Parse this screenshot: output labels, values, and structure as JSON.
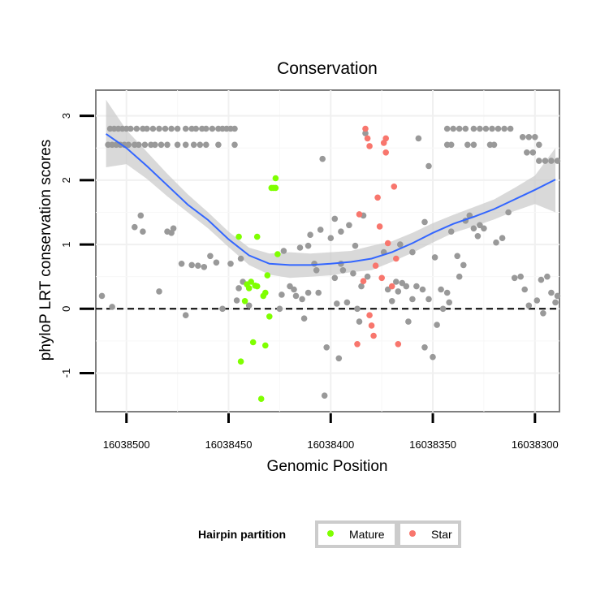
{
  "chart_data": {
    "type": "scatter",
    "title": "Conservation",
    "xlabel": "Genomic Position",
    "ylabel": "phyloP LRT conservation scores",
    "x_reversed": true,
    "xlim": [
      16038515,
      16038288
    ],
    "ylim": [
      -1.6,
      3.4
    ],
    "x_ticks": [
      16038500,
      16038450,
      16038400,
      16038350,
      16038300
    ],
    "x_tick_labels": [
      "16038500",
      "16038450",
      "16038400",
      "16038350",
      "16038300"
    ],
    "y_ticks": [
      -1,
      0,
      1,
      2,
      3
    ],
    "y_tick_labels": [
      "-1",
      "0",
      "1",
      "2",
      "3"
    ],
    "grid": true,
    "reference_line": {
      "y": 0,
      "style": "dashed"
    },
    "colors": {
      "background": "#ebebeb",
      "other": "#999999",
      "mature": "#7fff00",
      "star": "#f8766d",
      "smooth": "#3366ff",
      "ribbon": "#cccccc"
    },
    "legend": {
      "title": "Hairpin partition",
      "position": "bottom",
      "entries": [
        {
          "label": "Mature",
          "color": "#7fff00"
        },
        {
          "label": "Star",
          "color": "#f8766d"
        }
      ]
    },
    "series": [
      {
        "name": "Other",
        "color": "#999999",
        "in_legend": false,
        "points": [
          [
            16038508,
            2.8
          ],
          [
            16038506,
            2.8
          ],
          [
            16038504,
            2.8
          ],
          [
            16038502,
            2.8
          ],
          [
            16038500,
            2.8
          ],
          [
            16038498,
            2.8
          ],
          [
            16038495,
            2.8
          ],
          [
            16038492,
            2.8
          ],
          [
            16038490,
            2.8
          ],
          [
            16038487,
            2.8
          ],
          [
            16038484,
            2.8
          ],
          [
            16038481,
            2.8
          ],
          [
            16038478,
            2.8
          ],
          [
            16038475,
            2.8
          ],
          [
            16038471,
            2.8
          ],
          [
            16038468,
            2.8
          ],
          [
            16038466,
            2.8
          ],
          [
            16038463,
            2.8
          ],
          [
            16038461,
            2.8
          ],
          [
            16038458,
            2.8
          ],
          [
            16038455,
            2.8
          ],
          [
            16038453,
            2.8
          ],
          [
            16038451,
            2.8
          ],
          [
            16038449,
            2.8
          ],
          [
            16038447,
            2.8
          ],
          [
            16038509,
            2.55
          ],
          [
            16038507,
            2.55
          ],
          [
            16038505,
            2.55
          ],
          [
            16038503,
            2.55
          ],
          [
            16038501,
            2.55
          ],
          [
            16038499,
            2.55
          ],
          [
            16038496,
            2.55
          ],
          [
            16038494,
            2.55
          ],
          [
            16038491,
            2.55
          ],
          [
            16038488,
            2.55
          ],
          [
            16038486,
            2.55
          ],
          [
            16038483,
            2.55
          ],
          [
            16038480,
            2.55
          ],
          [
            16038475,
            2.55
          ],
          [
            16038471,
            2.55
          ],
          [
            16038467,
            2.55
          ],
          [
            16038464,
            2.55
          ],
          [
            16038461,
            2.55
          ],
          [
            16038455,
            2.55
          ],
          [
            16038447,
            2.55
          ],
          [
            16038343,
            2.8
          ],
          [
            16038340,
            2.8
          ],
          [
            16038337,
            2.8
          ],
          [
            16038334,
            2.8
          ],
          [
            16038330,
            2.8
          ],
          [
            16038327,
            2.8
          ],
          [
            16038324,
            2.8
          ],
          [
            16038321,
            2.8
          ],
          [
            16038318,
            2.8
          ],
          [
            16038315,
            2.8
          ],
          [
            16038312,
            2.8
          ],
          [
            16038343,
            2.55
          ],
          [
            16038341,
            2.55
          ],
          [
            16038333,
            2.55
          ],
          [
            16038330,
            2.55
          ],
          [
            16038322,
            2.55
          ],
          [
            16038320,
            2.55
          ],
          [
            16038306,
            2.67
          ],
          [
            16038303,
            2.67
          ],
          [
            16038300,
            2.67
          ],
          [
            16038304,
            2.43
          ],
          [
            16038301,
            2.43
          ],
          [
            16038298,
            2.3
          ],
          [
            16038295,
            2.3
          ],
          [
            16038292,
            2.3
          ],
          [
            16038289,
            2.3
          ],
          [
            16038298,
            2.55
          ],
          [
            16038512,
            0.2
          ],
          [
            16038507,
            0.03
          ],
          [
            16038496,
            1.27
          ],
          [
            16038493,
            1.45
          ],
          [
            16038492,
            1.2
          ],
          [
            16038484,
            0.27
          ],
          [
            16038480,
            1.2
          ],
          [
            16038478,
            1.18
          ],
          [
            16038477,
            1.25
          ],
          [
            16038473,
            0.7
          ],
          [
            16038471,
            -0.1
          ],
          [
            16038468,
            0.68
          ],
          [
            16038465,
            0.67
          ],
          [
            16038462,
            0.65
          ],
          [
            16038459,
            0.82
          ],
          [
            16038456,
            0.72
          ],
          [
            16038453,
            0.0
          ],
          [
            16038449,
            0.7
          ],
          [
            16038446,
            0.13
          ],
          [
            16038445,
            0.32
          ],
          [
            16038444,
            0.78
          ],
          [
            16038443,
            0.42
          ],
          [
            16038440,
            0.05
          ],
          [
            16038425,
            0.0
          ],
          [
            16038424,
            0.22
          ],
          [
            16038423,
            0.9
          ],
          [
            16038420,
            0.35
          ],
          [
            16038418,
            0.3
          ],
          [
            16038417,
            0.2
          ],
          [
            16038415,
            0.95
          ],
          [
            16038414,
            0.15
          ],
          [
            16038413,
            -0.15
          ],
          [
            16038411,
            0.25
          ],
          [
            16038411,
            0.98
          ],
          [
            16038410,
            1.15
          ],
          [
            16038408,
            0.7
          ],
          [
            16038407,
            0.6
          ],
          [
            16038406,
            0.25
          ],
          [
            16038405,
            1.23
          ],
          [
            16038404,
            2.33
          ],
          [
            16038403,
            -1.35
          ],
          [
            16038402,
            -0.6
          ],
          [
            16038400,
            1.1
          ],
          [
            16038398,
            1.4
          ],
          [
            16038397,
            0.08
          ],
          [
            16038398,
            0.48
          ],
          [
            16038395,
            0.7
          ],
          [
            16038394,
            0.6
          ],
          [
            16038396,
            -0.77
          ],
          [
            16038395,
            1.2
          ],
          [
            16038392,
            0.1
          ],
          [
            16038391,
            1.3
          ],
          [
            16038389,
            0.55
          ],
          [
            16038388,
            0.98
          ],
          [
            16038387,
            0.0
          ],
          [
            16038386,
            -0.2
          ],
          [
            16038385,
            0.35
          ],
          [
            16038384,
            1.45
          ],
          [
            16038383,
            2.73
          ],
          [
            16038382,
            0.5
          ],
          [
            16038374,
            0.88
          ],
          [
            16038372,
            0.3
          ],
          [
            16038370,
            0.12
          ],
          [
            16038368,
            0.42
          ],
          [
            16038367,
            0.27
          ],
          [
            16038366,
            1.0
          ],
          [
            16038365,
            0.4
          ],
          [
            16038363,
            0.35
          ],
          [
            16038362,
            -0.2
          ],
          [
            16038360,
            0.15
          ],
          [
            16038360,
            0.88
          ],
          [
            16038358,
            0.35
          ],
          [
            16038357,
            2.65
          ],
          [
            16038355,
            0.3
          ],
          [
            16038354,
            -0.6
          ],
          [
            16038354,
            1.35
          ],
          [
            16038352,
            0.15
          ],
          [
            16038352,
            2.22
          ],
          [
            16038350,
            -0.75
          ],
          [
            16038349,
            0.8
          ],
          [
            16038348,
            -0.25
          ],
          [
            16038346,
            0.3
          ],
          [
            16038345,
            0.0
          ],
          [
            16038343,
            0.25
          ],
          [
            16038342,
            0.1
          ],
          [
            16038341,
            1.2
          ],
          [
            16038338,
            0.82
          ],
          [
            16038337,
            0.5
          ],
          [
            16038335,
            0.68
          ],
          [
            16038334,
            1.37
          ],
          [
            16038332,
            1.45
          ],
          [
            16038330,
            1.25
          ],
          [
            16038328,
            1.13
          ],
          [
            16038327,
            1.3
          ],
          [
            16038325,
            1.25
          ],
          [
            16038319,
            1.03
          ],
          [
            16038316,
            1.1
          ],
          [
            16038313,
            1.5
          ],
          [
            16038310,
            0.48
          ],
          [
            16038307,
            0.5
          ],
          [
            16038305,
            0.3
          ],
          [
            16038303,
            0.05
          ],
          [
            16038299,
            0.13
          ],
          [
            16038297,
            0.45
          ],
          [
            16038296,
            -0.07
          ],
          [
            16038294,
            0.5
          ],
          [
            16038292,
            0.25
          ],
          [
            16038290,
            0.1
          ],
          [
            16038289,
            0.2
          ]
        ]
      },
      {
        "name": "Mature",
        "color": "#7fff00",
        "in_legend": true,
        "points": [
          [
            16038445,
            1.12
          ],
          [
            16038444,
            -0.82
          ],
          [
            16038442,
            0.12
          ],
          [
            16038441,
            0.38
          ],
          [
            16038440,
            0.32
          ],
          [
            16038439,
            0.42
          ],
          [
            16038438,
            -0.52
          ],
          [
            16038437,
            0.36
          ],
          [
            16038436,
            1.12
          ],
          [
            16038436,
            0.35
          ],
          [
            16038434,
            -1.4
          ],
          [
            16038433,
            0.2
          ],
          [
            16038432,
            -0.57
          ],
          [
            16038432,
            0.25
          ],
          [
            16038431,
            0.52
          ],
          [
            16038430,
            -0.12
          ],
          [
            16038429,
            1.88
          ],
          [
            16038428,
            1.88
          ],
          [
            16038427,
            1.88
          ],
          [
            16038427,
            2.03
          ],
          [
            16038426,
            0.85
          ]
        ]
      },
      {
        "name": "Star",
        "color": "#f8766d",
        "in_legend": true,
        "points": [
          [
            16038387,
            -0.55
          ],
          [
            16038386,
            1.47
          ],
          [
            16038384,
            0.43
          ],
          [
            16038383,
            2.8
          ],
          [
            16038382,
            2.65
          ],
          [
            16038381,
            2.53
          ],
          [
            16038381,
            -0.1
          ],
          [
            16038380,
            -0.26
          ],
          [
            16038379,
            -0.42
          ],
          [
            16038378,
            0.67
          ],
          [
            16038377,
            1.73
          ],
          [
            16038376,
            1.28
          ],
          [
            16038375,
            0.48
          ],
          [
            16038374,
            2.58
          ],
          [
            16038373,
            2.65
          ],
          [
            16038373,
            2.43
          ],
          [
            16038372,
            1.02
          ],
          [
            16038370,
            0.35
          ],
          [
            16038369,
            1.9
          ],
          [
            16038368,
            0.78
          ],
          [
            16038367,
            -0.55
          ]
        ]
      }
    ],
    "smooth": {
      "x": [
        16038510,
        16038500,
        16038490,
        16038480,
        16038470,
        16038460,
        16038450,
        16038440,
        16038430,
        16038420,
        16038410,
        16038400,
        16038390,
        16038380,
        16038370,
        16038360,
        16038350,
        16038340,
        16038330,
        16038320,
        16038310,
        16038300,
        16038290
      ],
      "y": [
        2.72,
        2.5,
        2.22,
        1.92,
        1.62,
        1.38,
        1.08,
        0.83,
        0.7,
        0.68,
        0.68,
        0.7,
        0.73,
        0.78,
        0.88,
        1.02,
        1.18,
        1.32,
        1.43,
        1.55,
        1.7,
        1.85,
        2.01
      ],
      "lower": [
        2.2,
        2.25,
        2.02,
        1.75,
        1.5,
        1.25,
        0.96,
        0.68,
        0.53,
        0.48,
        0.5,
        0.52,
        0.57,
        0.6,
        0.73,
        0.87,
        1.03,
        1.18,
        1.28,
        1.39,
        1.52,
        1.63,
        1.5
      ],
      "upper": [
        3.25,
        2.78,
        2.44,
        2.1,
        1.78,
        1.5,
        1.2,
        0.95,
        0.86,
        0.88,
        0.86,
        0.88,
        0.9,
        0.98,
        1.05,
        1.18,
        1.33,
        1.46,
        1.58,
        1.7,
        1.88,
        2.07,
        2.5
      ]
    }
  }
}
